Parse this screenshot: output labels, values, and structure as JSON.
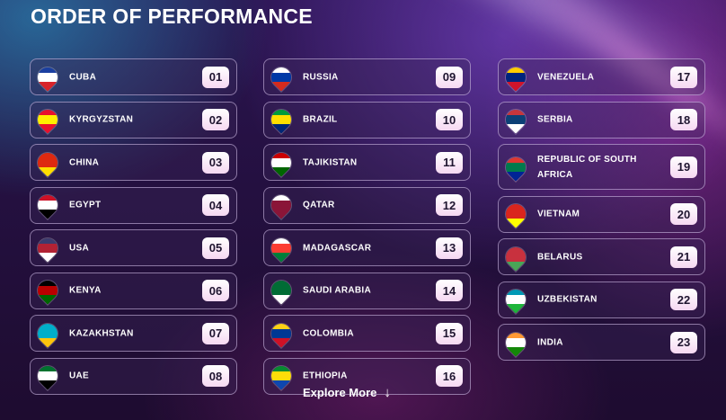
{
  "title": "ORDER OF PERFORMANCE",
  "columns": [
    [
      {
        "country": "CUBA",
        "order": "01",
        "flag_colors": [
          "#1a3fa0",
          "#ffffff",
          "#d8232a"
        ]
      },
      {
        "country": "KYRGYZSTAN",
        "order": "02",
        "flag_colors": [
          "#e8112d",
          "#ffef00",
          "#e8112d"
        ]
      },
      {
        "country": "CHINA",
        "order": "03",
        "flag_colors": [
          "#de2910",
          "#de2910",
          "#ffde00"
        ]
      },
      {
        "country": "EGYPT",
        "order": "04",
        "flag_colors": [
          "#ce1126",
          "#ffffff",
          "#000000"
        ]
      },
      {
        "country": "USA",
        "order": "05",
        "flag_colors": [
          "#3c3b6e",
          "#b22234",
          "#ffffff"
        ]
      },
      {
        "country": "KENYA",
        "order": "06",
        "flag_colors": [
          "#000000",
          "#bb0000",
          "#006600"
        ]
      },
      {
        "country": "KAZAKHSTAN",
        "order": "07",
        "flag_colors": [
          "#00afca",
          "#00afca",
          "#fec50c"
        ]
      },
      {
        "country": "UAE",
        "order": "08",
        "flag_colors": [
          "#00732f",
          "#ffffff",
          "#000000"
        ]
      }
    ],
    [
      {
        "country": "RUSSIA",
        "order": "09",
        "flag_colors": [
          "#ffffff",
          "#0039a6",
          "#d52b1e"
        ]
      },
      {
        "country": "BRAZIL",
        "order": "10",
        "flag_colors": [
          "#009c3b",
          "#ffdf00",
          "#002776"
        ]
      },
      {
        "country": "TAJIKISTAN",
        "order": "11",
        "flag_colors": [
          "#cc0000",
          "#ffffff",
          "#006600"
        ]
      },
      {
        "country": "QATAR",
        "order": "12",
        "flag_colors": [
          "#ffffff",
          "#8a1538",
          "#8a1538"
        ]
      },
      {
        "country": "MADAGASCAR",
        "order": "13",
        "flag_colors": [
          "#ffffff",
          "#fc3d32",
          "#007e3a"
        ]
      },
      {
        "country": "SAUDI ARABIA",
        "order": "14",
        "flag_colors": [
          "#006c35",
          "#006c35",
          "#ffffff"
        ]
      },
      {
        "country": "COLOMBIA",
        "order": "15",
        "flag_colors": [
          "#fcd116",
          "#003893",
          "#ce1126"
        ]
      },
      {
        "country": "ETHIOPIA",
        "order": "16",
        "flag_colors": [
          "#078930",
          "#fcdd09",
          "#0f47af"
        ]
      }
    ],
    [
      {
        "country": "VENEZUELA",
        "order": "17",
        "flag_colors": [
          "#ffcc00",
          "#00247d",
          "#cf142b"
        ]
      },
      {
        "country": "SERBIA",
        "order": "18",
        "flag_colors": [
          "#c6363c",
          "#0c4076",
          "#ffffff"
        ]
      },
      {
        "country": "REPUBLIC OF SOUTH AFRICA",
        "order": "19",
        "flag_colors": [
          "#de3831",
          "#007a4d",
          "#002395"
        ]
      },
      {
        "country": "VIETNAM",
        "order": "20",
        "flag_colors": [
          "#da251d",
          "#da251d",
          "#ffff00"
        ]
      },
      {
        "country": "BELARUS",
        "order": "21",
        "flag_colors": [
          "#c8313e",
          "#c8313e",
          "#4aa657"
        ]
      },
      {
        "country": "UZBEKISTAN",
        "order": "22",
        "flag_colors": [
          "#0099b5",
          "#ffffff",
          "#1eb53a"
        ]
      },
      {
        "country": "INDIA",
        "order": "23",
        "flag_colors": [
          "#ff9933",
          "#ffffff",
          "#138808"
        ]
      }
    ]
  ],
  "explore_label": "Explore More",
  "explore_icon": "arrow-down-icon"
}
